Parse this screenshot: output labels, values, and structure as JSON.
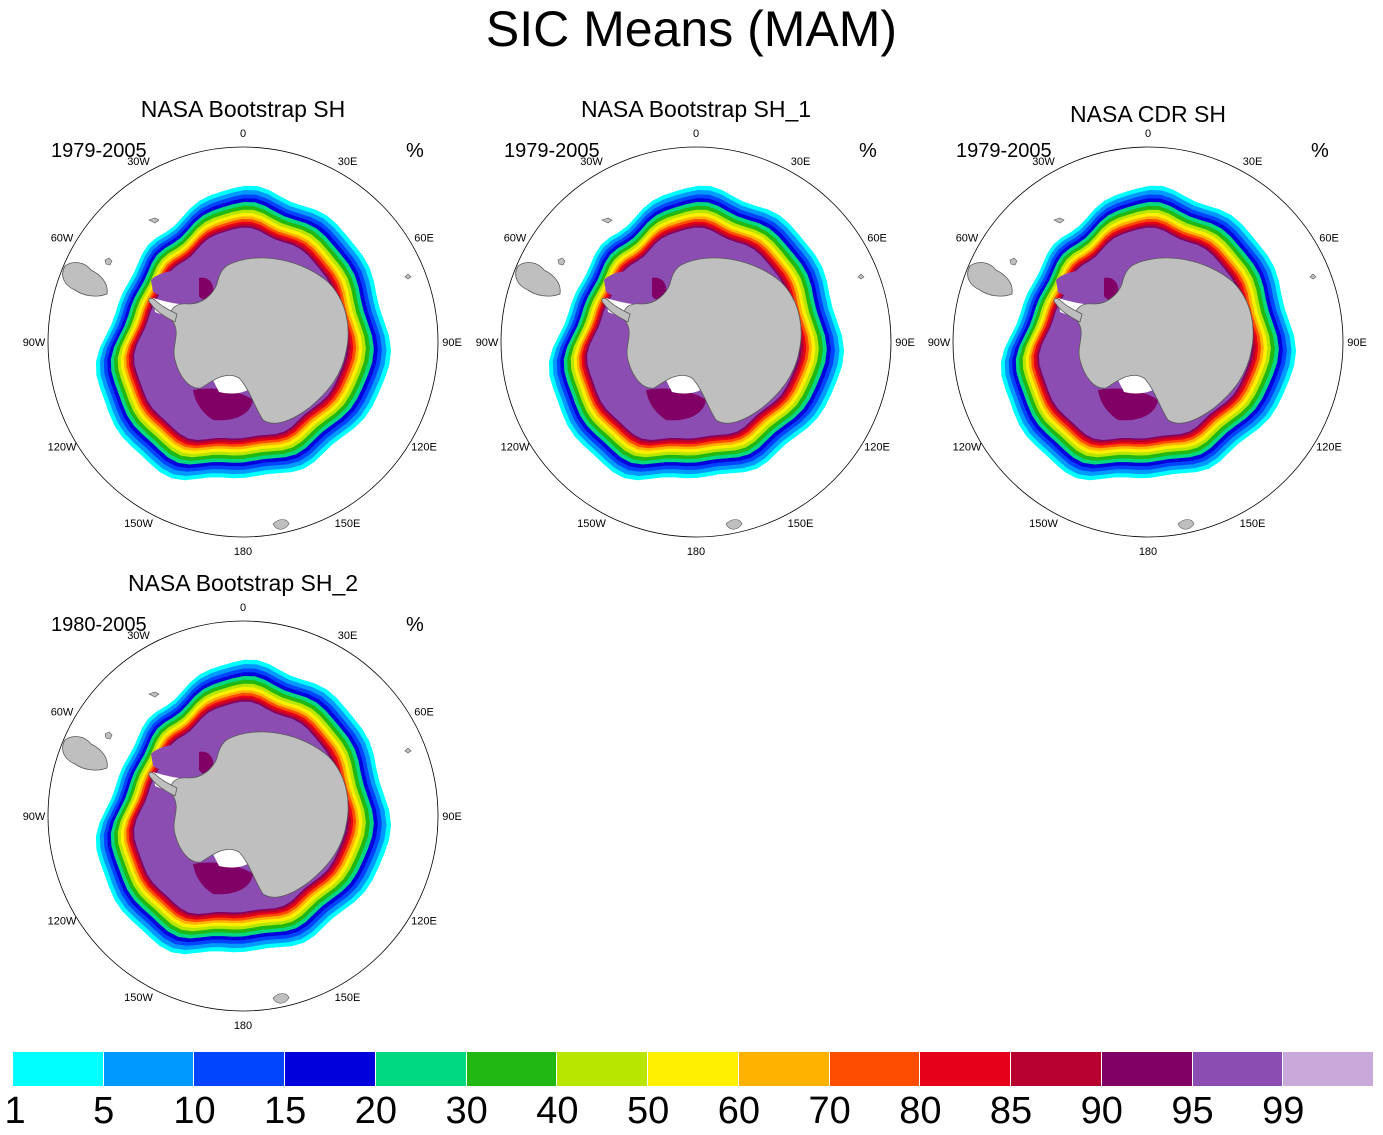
{
  "title": "SIC Means (MAM)",
  "panels": [
    {
      "title": "NASA Bootstrap SH",
      "years": "1979-2005",
      "units": "%"
    },
    {
      "title": "NASA Bootstrap SH_1",
      "years": "1979-2005",
      "units": "%"
    },
    {
      "title": "NASA CDR SH",
      "years": "1979-2005",
      "units": "%"
    },
    {
      "title": "NASA Bootstrap SH_2",
      "years": "1980-2005",
      "units": "%"
    }
  ],
  "longitude_labels": [
    "0",
    "30E",
    "60E",
    "90E",
    "120E",
    "150E",
    "180",
    "150W",
    "120W",
    "90W",
    "60W",
    "30W"
  ],
  "colorbar": {
    "labels": [
      "1",
      "5",
      "10",
      "15",
      "20",
      "30",
      "40",
      "50",
      "60",
      "70",
      "80",
      "85",
      "90",
      "95",
      "99"
    ],
    "colors": [
      "#00ffff",
      "#0099ff",
      "#0044ff",
      "#0000dd",
      "#00d980",
      "#22b814",
      "#b9e600",
      "#fff000",
      "#ffb300",
      "#ff4d00",
      "#e6001a",
      "#b8002e",
      "#800066",
      "#8c4db3",
      "#c9a9d9"
    ]
  },
  "map_colors": {
    "land": "#bfbfbf",
    "coast": "#5a5a5a",
    "ice_shelf": "#ffffff"
  }
}
